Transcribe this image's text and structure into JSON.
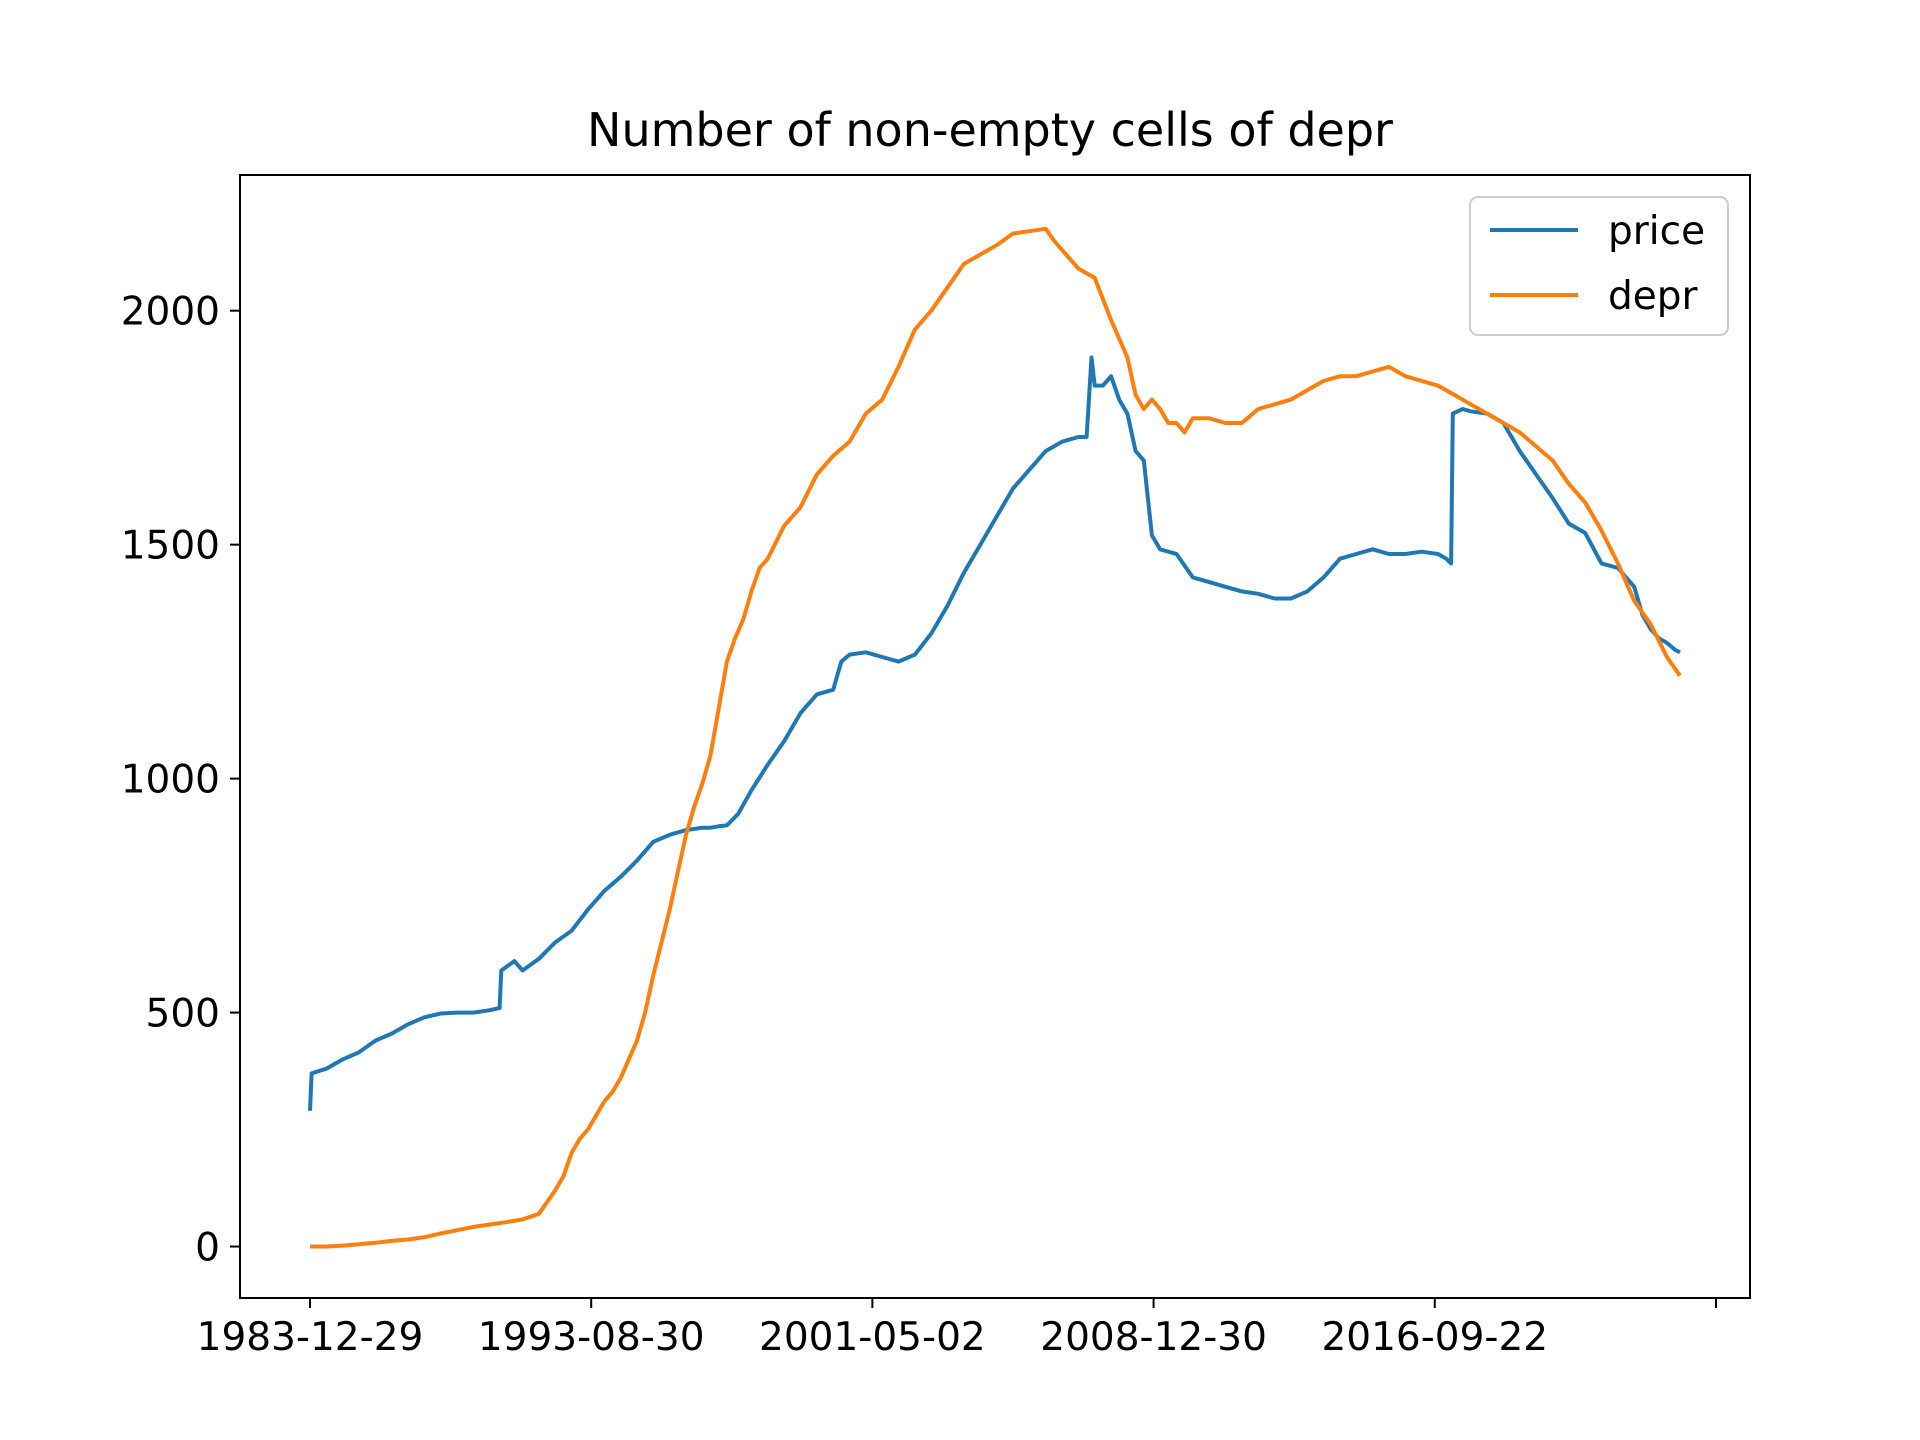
{
  "chart_data": {
    "type": "line",
    "title": "Number of non-empty cells of depr",
    "xlabel": "",
    "ylabel": "",
    "x_tick_labels": [
      "1983-12-29",
      "1993-08-30",
      "2001-05-02",
      "2008-12-30",
      "2016-09-22"
    ],
    "y_tick_labels": [
      "0",
      "500",
      "1000",
      "1500",
      "2000"
    ],
    "y_ticks": [
      0,
      500,
      1000,
      1500,
      2000
    ],
    "ylim": [
      -110,
      2290
    ],
    "grid": false,
    "legend_position": "top-right",
    "series": [
      {
        "name": "price",
        "color": "#1f77b4",
        "points": [
          [
            0,
            290
          ],
          [
            1,
            370
          ],
          [
            10,
            380
          ],
          [
            20,
            400
          ],
          [
            30,
            415
          ],
          [
            40,
            440
          ],
          [
            50,
            455
          ],
          [
            60,
            475
          ],
          [
            70,
            490
          ],
          [
            80,
            498
          ],
          [
            90,
            500
          ],
          [
            100,
            500
          ],
          [
            110,
            505
          ],
          [
            116,
            510
          ],
          [
            117,
            590
          ],
          [
            125,
            610
          ],
          [
            130,
            590
          ],
          [
            140,
            615
          ],
          [
            150,
            650
          ],
          [
            160,
            675
          ],
          [
            170,
            720
          ],
          [
            180,
            760
          ],
          [
            190,
            790
          ],
          [
            200,
            825
          ],
          [
            210,
            865
          ],
          [
            220,
            880
          ],
          [
            230,
            890
          ],
          [
            240,
            895
          ],
          [
            245,
            895
          ],
          [
            250,
            898
          ],
          [
            255,
            900
          ],
          [
            262,
            925
          ],
          [
            270,
            975
          ],
          [
            280,
            1030
          ],
          [
            290,
            1080
          ],
          [
            300,
            1140
          ],
          [
            310,
            1180
          ],
          [
            320,
            1190
          ],
          [
            325,
            1250
          ],
          [
            330,
            1265
          ],
          [
            340,
            1270
          ],
          [
            350,
            1260
          ],
          [
            360,
            1250
          ],
          [
            370,
            1265
          ],
          [
            380,
            1310
          ],
          [
            390,
            1370
          ],
          [
            400,
            1440
          ],
          [
            410,
            1500
          ],
          [
            420,
            1560
          ],
          [
            430,
            1620
          ],
          [
            440,
            1660
          ],
          [
            450,
            1700
          ],
          [
            460,
            1720
          ],
          [
            470,
            1730
          ],
          [
            475,
            1730
          ],
          [
            478,
            1900
          ],
          [
            480,
            1840
          ],
          [
            485,
            1840
          ],
          [
            490,
            1860
          ],
          [
            495,
            1810
          ],
          [
            500,
            1780
          ],
          [
            505,
            1700
          ],
          [
            510,
            1680
          ],
          [
            515,
            1520
          ],
          [
            520,
            1490
          ],
          [
            530,
            1480
          ],
          [
            540,
            1430
          ],
          [
            550,
            1420
          ],
          [
            560,
            1410
          ],
          [
            570,
            1400
          ],
          [
            580,
            1395
          ],
          [
            590,
            1385
          ],
          [
            600,
            1385
          ],
          [
            610,
            1400
          ],
          [
            620,
            1430
          ],
          [
            630,
            1470
          ],
          [
            640,
            1480
          ],
          [
            650,
            1490
          ],
          [
            660,
            1480
          ],
          [
            670,
            1480
          ],
          [
            680,
            1485
          ],
          [
            690,
            1480
          ],
          [
            695,
            1470
          ],
          [
            698,
            1460
          ],
          [
            699,
            1780
          ],
          [
            705,
            1790
          ],
          [
            710,
            1785
          ],
          [
            720,
            1780
          ],
          [
            730,
            1760
          ],
          [
            740,
            1700
          ],
          [
            750,
            1650
          ],
          [
            760,
            1600
          ],
          [
            770,
            1545
          ],
          [
            780,
            1525
          ],
          [
            790,
            1460
          ],
          [
            800,
            1450
          ],
          [
            810,
            1410
          ],
          [
            815,
            1350
          ],
          [
            820,
            1320
          ],
          [
            825,
            1300
          ],
          [
            830,
            1290
          ],
          [
            835,
            1275
          ],
          [
            838,
            1270
          ]
        ]
      },
      {
        "name": "depr",
        "color": "#ff7f0e",
        "points": [
          [
            0,
            0
          ],
          [
            10,
            0
          ],
          [
            20,
            2
          ],
          [
            30,
            5
          ],
          [
            40,
            8
          ],
          [
            50,
            12
          ],
          [
            60,
            15
          ],
          [
            70,
            20
          ],
          [
            80,
            28
          ],
          [
            90,
            35
          ],
          [
            100,
            42
          ],
          [
            110,
            47
          ],
          [
            120,
            52
          ],
          [
            130,
            58
          ],
          [
            140,
            70
          ],
          [
            150,
            120
          ],
          [
            155,
            150
          ],
          [
            160,
            200
          ],
          [
            165,
            230
          ],
          [
            170,
            250
          ],
          [
            175,
            280
          ],
          [
            180,
            310
          ],
          [
            185,
            330
          ],
          [
            190,
            360
          ],
          [
            195,
            400
          ],
          [
            200,
            440
          ],
          [
            205,
            500
          ],
          [
            210,
            580
          ],
          [
            215,
            650
          ],
          [
            220,
            720
          ],
          [
            225,
            800
          ],
          [
            230,
            880
          ],
          [
            235,
            940
          ],
          [
            240,
            990
          ],
          [
            245,
            1050
          ],
          [
            250,
            1150
          ],
          [
            255,
            1250
          ],
          [
            260,
            1300
          ],
          [
            265,
            1340
          ],
          [
            270,
            1400
          ],
          [
            275,
            1450
          ],
          [
            280,
            1470
          ],
          [
            290,
            1540
          ],
          [
            300,
            1580
          ],
          [
            310,
            1650
          ],
          [
            320,
            1690
          ],
          [
            330,
            1720
          ],
          [
            340,
            1780
          ],
          [
            350,
            1810
          ],
          [
            360,
            1880
          ],
          [
            370,
            1960
          ],
          [
            380,
            2000
          ],
          [
            390,
            2050
          ],
          [
            400,
            2100
          ],
          [
            410,
            2120
          ],
          [
            420,
            2140
          ],
          [
            430,
            2165
          ],
          [
            440,
            2170
          ],
          [
            450,
            2175
          ],
          [
            455,
            2150
          ],
          [
            460,
            2130
          ],
          [
            470,
            2090
          ],
          [
            480,
            2070
          ],
          [
            490,
            1980
          ],
          [
            500,
            1900
          ],
          [
            505,
            1820
          ],
          [
            510,
            1790
          ],
          [
            515,
            1810
          ],
          [
            520,
            1790
          ],
          [
            525,
            1760
          ],
          [
            530,
            1760
          ],
          [
            535,
            1740
          ],
          [
            540,
            1770
          ],
          [
            550,
            1770
          ],
          [
            560,
            1760
          ],
          [
            570,
            1760
          ],
          [
            580,
            1790
          ],
          [
            590,
            1800
          ],
          [
            600,
            1810
          ],
          [
            610,
            1830
          ],
          [
            620,
            1850
          ],
          [
            630,
            1860
          ],
          [
            640,
            1860
          ],
          [
            650,
            1870
          ],
          [
            660,
            1880
          ],
          [
            670,
            1860
          ],
          [
            680,
            1850
          ],
          [
            690,
            1840
          ],
          [
            700,
            1820
          ],
          [
            710,
            1800
          ],
          [
            720,
            1780
          ],
          [
            730,
            1760
          ],
          [
            740,
            1740
          ],
          [
            750,
            1710
          ],
          [
            760,
            1680
          ],
          [
            770,
            1630
          ],
          [
            780,
            1590
          ],
          [
            790,
            1530
          ],
          [
            800,
            1460
          ],
          [
            810,
            1380
          ],
          [
            820,
            1330
          ],
          [
            830,
            1260
          ],
          [
            835,
            1235
          ],
          [
            838,
            1220
          ]
        ]
      }
    ]
  }
}
